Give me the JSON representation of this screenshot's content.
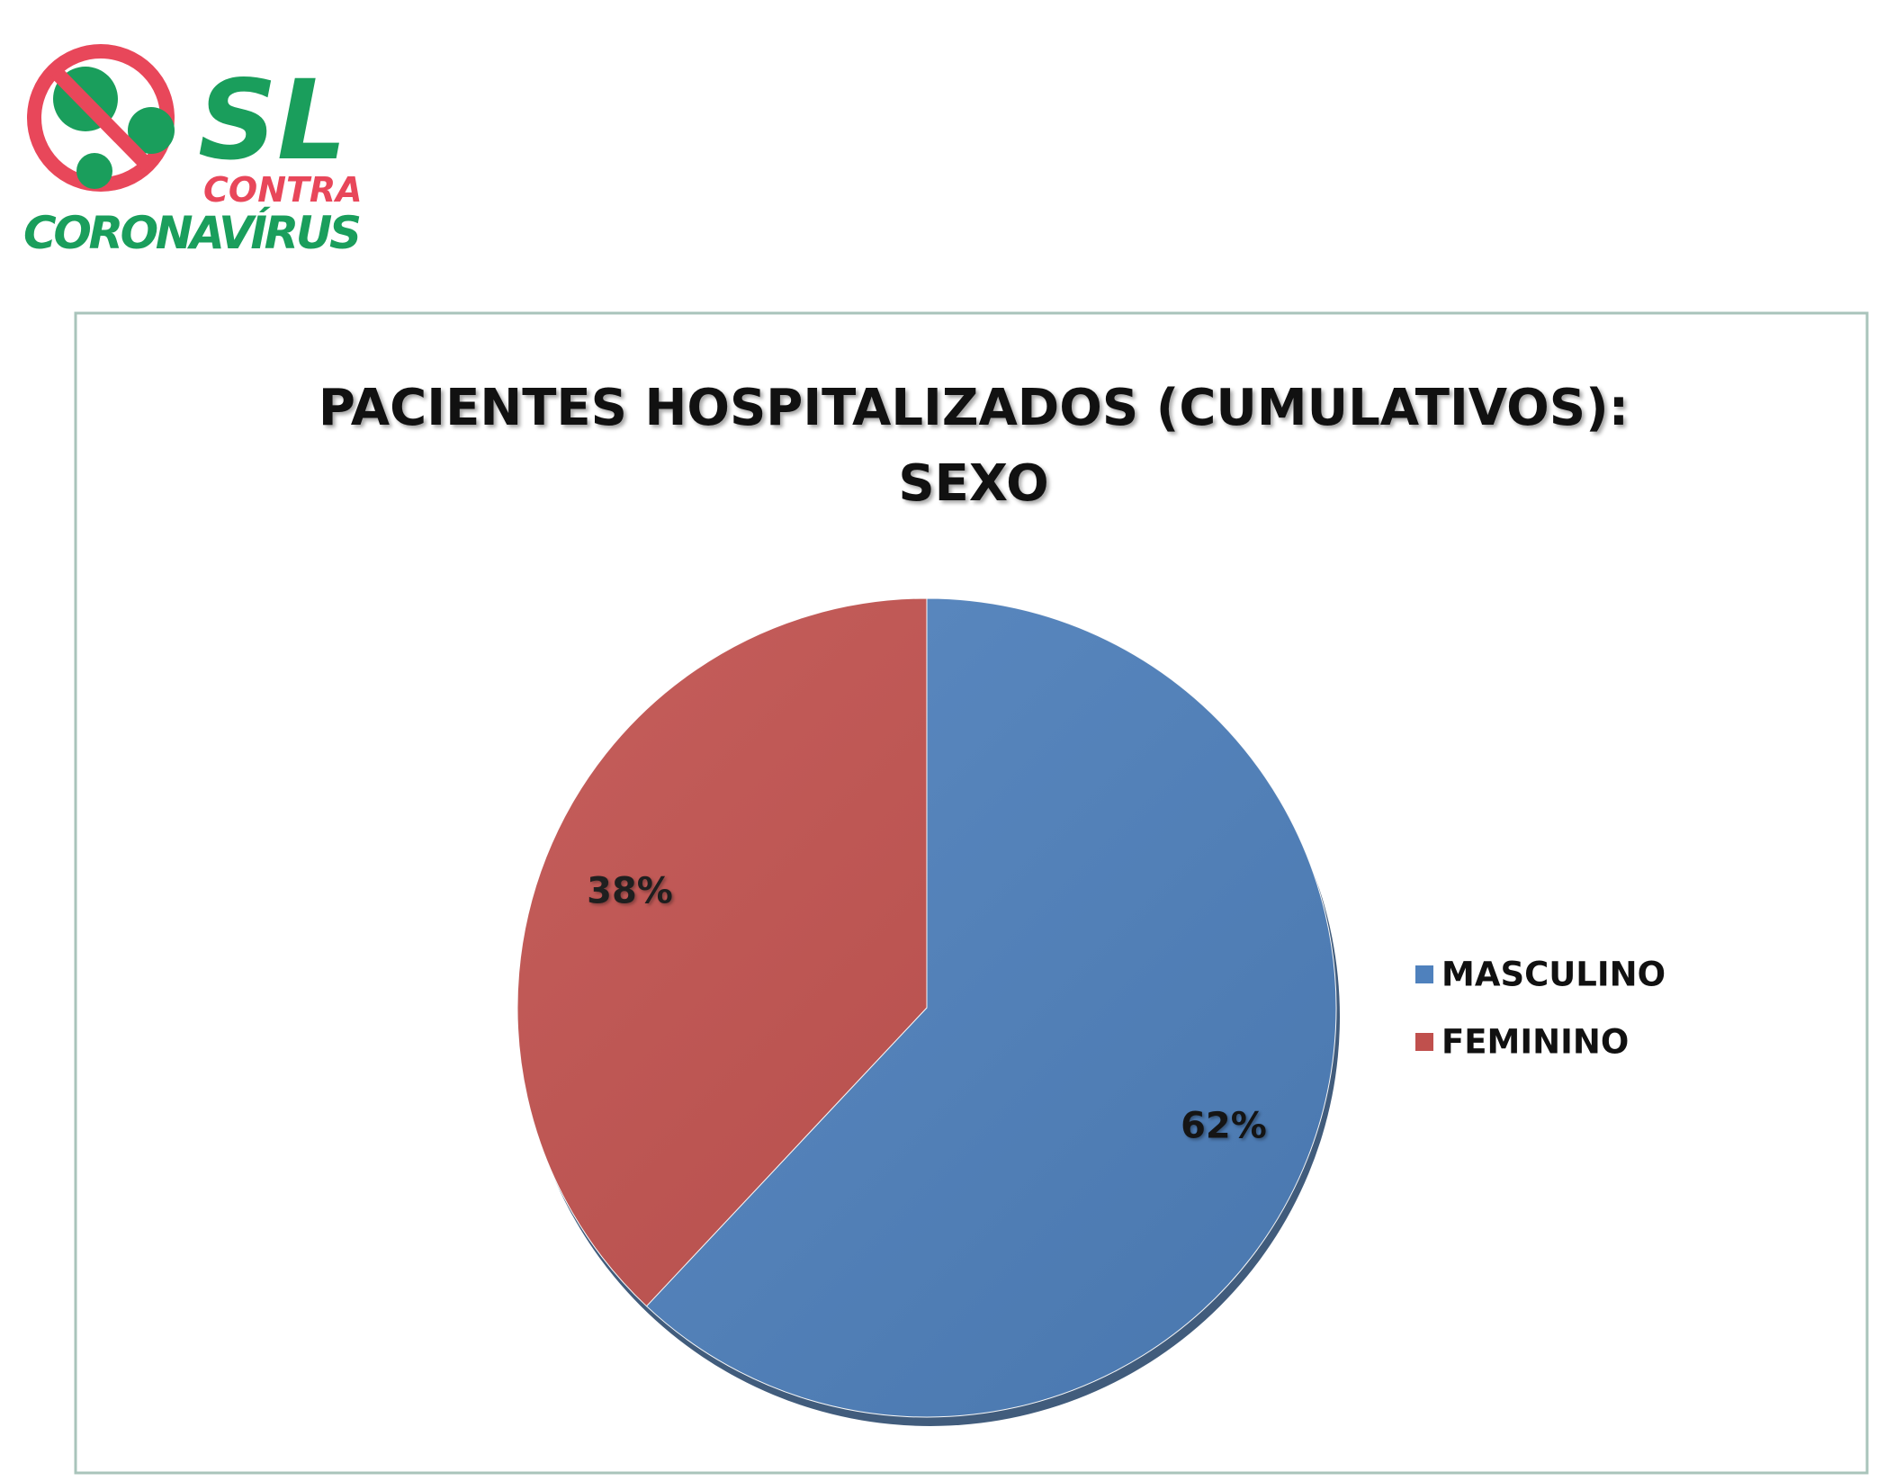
{
  "logo": {
    "line1": "SL",
    "line2": "CONTRA",
    "line3": "CORONAVÍRUS"
  },
  "chart_data": {
    "type": "pie",
    "title": [
      "PACIENTES HOSPITALIZADOS (CUMULATIVOS):",
      "SEXO"
    ],
    "categories": [
      "MASCULINO",
      "FEMININO"
    ],
    "values": [
      62,
      38
    ],
    "value_labels": [
      "62%",
      "38%"
    ],
    "colors": [
      "#4f81bd",
      "#c0504d"
    ],
    "legend": "right"
  }
}
